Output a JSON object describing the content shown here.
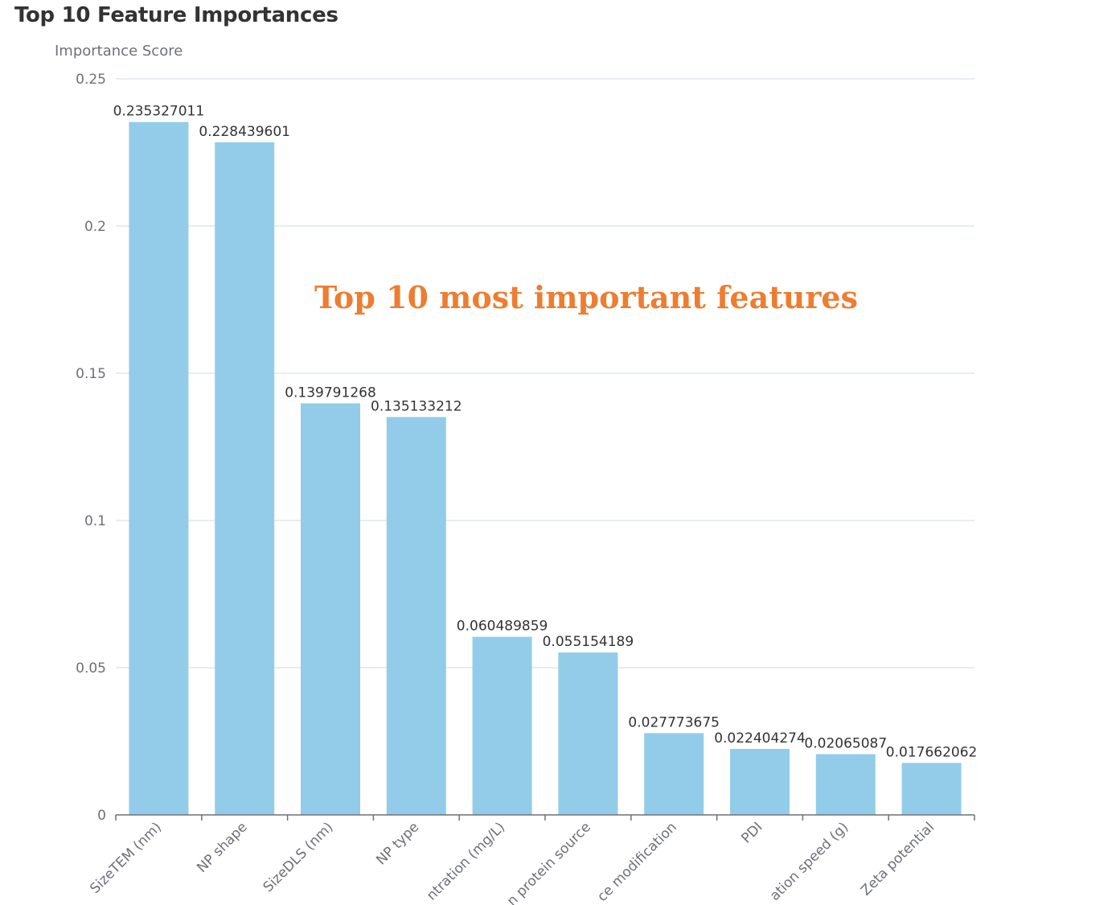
{
  "chart_data": {
    "type": "bar",
    "title": "Top 10 Feature Importances",
    "ylabel": "Importance Score",
    "xlabel": "",
    "ylim": [
      0,
      0.25
    ],
    "yticks": [
      0,
      0.05,
      0.1,
      0.15,
      0.2,
      0.25
    ],
    "ytick_labels": [
      "0",
      "0.05",
      "0.1",
      "0.15",
      "0.2",
      "0.25"
    ],
    "grid": true,
    "categories": [
      "SizeTEM (nm)",
      "NP shape",
      "SizeDLS (nm)",
      "NP type",
      "ntration (mg/L)",
      "n protein source",
      "ce modification",
      "PDI",
      "ation speed (g)",
      "Zeta potential"
    ],
    "values": [
      0.235327011,
      0.228439601,
      0.139791268,
      0.135133212,
      0.060489859,
      0.055154189,
      0.027773675,
      0.022404274,
      0.02065087,
      0.017662062
    ],
    "value_labels": [
      "0.235327011",
      "0.228439601",
      "0.139791268",
      "0.135133212",
      "0.060489859",
      "0.055154189",
      "0.027773675",
      "0.022404274",
      "0.02065087",
      "0.017662062"
    ],
    "annotation": "Top 10 most important features",
    "colors": {
      "bar": "#93cce9",
      "grid": "#e0e6f1",
      "axis": "#6e7079",
      "annotation": "#ed7d31"
    }
  }
}
